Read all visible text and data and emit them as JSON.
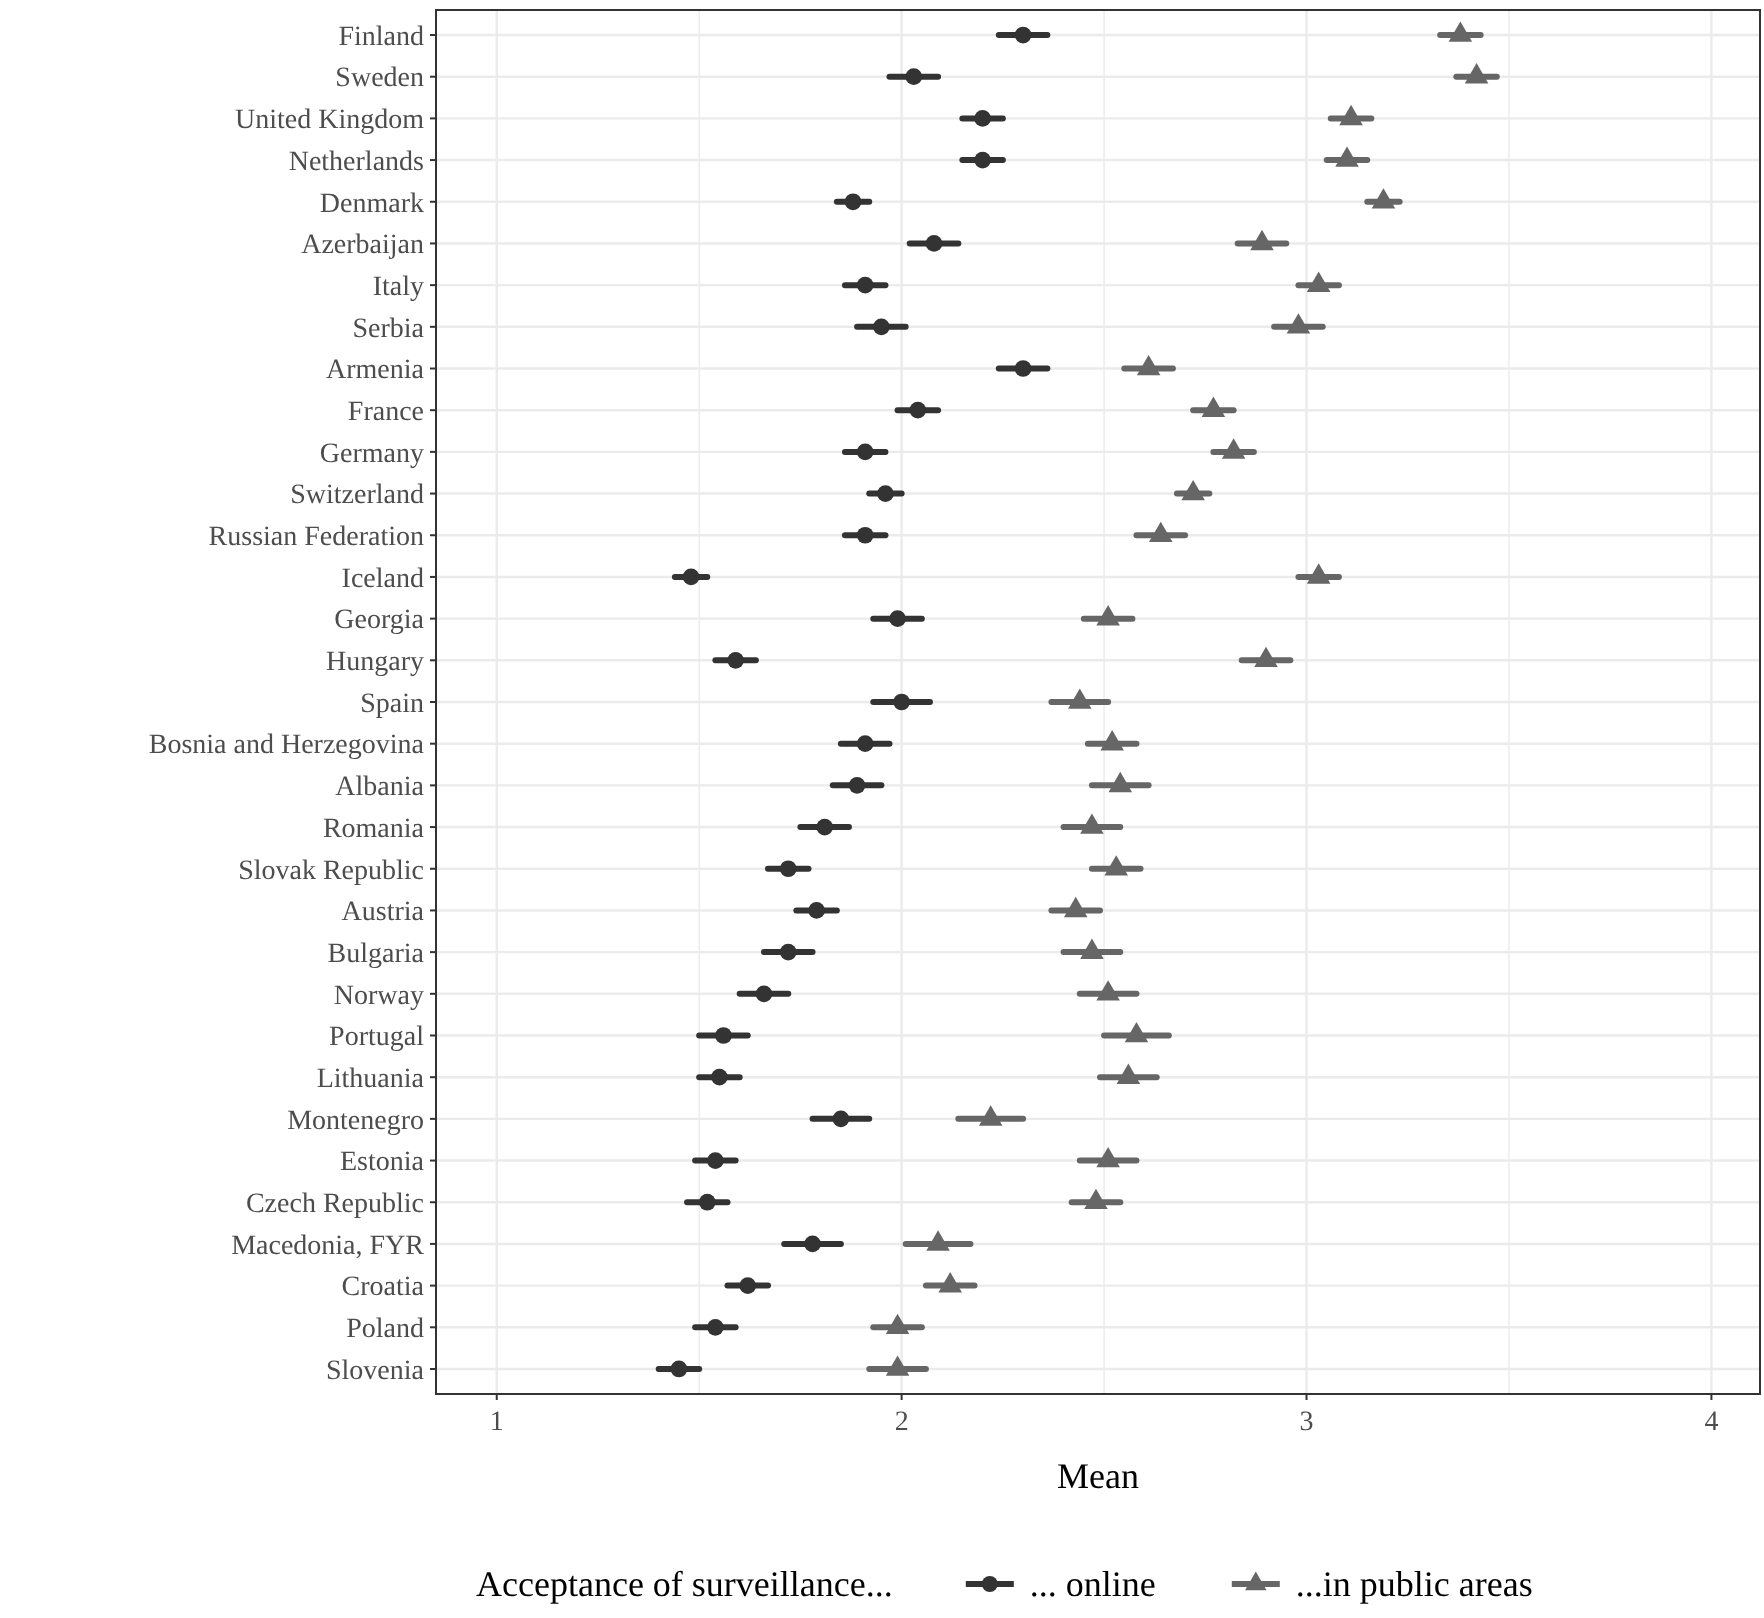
{
  "chart_data": {
    "type": "scatter",
    "orientation": "horizontal",
    "xlabel": "Mean",
    "legend_title": "Acceptance of surveillance...",
    "legend": "bottom",
    "grid": true,
    "categories": [
      "Finland",
      "Sweden",
      "United Kingdom",
      "Netherlands",
      "Denmark",
      "Azerbaijan",
      "Italy",
      "Serbia",
      "Armenia",
      "France",
      "Germany",
      "Switzerland",
      "Russian Federation",
      "Iceland",
      "Georgia",
      "Hungary",
      "Spain",
      "Bosnia and Herzegovina",
      "Albania",
      "Romania",
      "Slovak Republic",
      "Austria",
      "Bulgaria",
      "Norway",
      "Portugal",
      "Lithuania",
      "Montenegro",
      "Estonia",
      "Czech Republic",
      "Macedonia, FYR",
      "Croatia",
      "Poland",
      "Slovenia"
    ],
    "xlim": [
      0.85,
      4.12
    ],
    "xticks": [
      1,
      {
        "value": 1.5,
        "label": null
      },
      2,
      {
        "value": 2.5,
        "label": null
      },
      3,
      {
        "value": 3.5,
        "label": null
      },
      4
    ],
    "series": [
      {
        "name": "... online",
        "color": "#333333",
        "marker": "circle",
        "values": [
          2.3,
          2.03,
          2.2,
          2.2,
          1.88,
          2.08,
          1.91,
          1.95,
          2.3,
          2.04,
          1.91,
          1.96,
          1.91,
          1.48,
          1.99,
          1.59,
          2.0,
          1.91,
          1.89,
          1.81,
          1.72,
          1.79,
          1.72,
          1.66,
          1.56,
          1.55,
          1.85,
          1.54,
          1.52,
          1.78,
          1.62,
          1.54,
          1.45
        ],
        "errors": [
          0.06,
          0.06,
          0.05,
          0.05,
          0.04,
          0.06,
          0.05,
          0.06,
          0.06,
          0.05,
          0.05,
          0.04,
          0.05,
          0.04,
          0.06,
          0.05,
          0.07,
          0.06,
          0.06,
          0.06,
          0.05,
          0.05,
          0.06,
          0.06,
          0.06,
          0.05,
          0.07,
          0.05,
          0.05,
          0.07,
          0.05,
          0.05,
          0.05
        ]
      },
      {
        "name": "...in public areas",
        "color": "#666666",
        "marker": "triangle",
        "values": [
          3.38,
          3.42,
          3.11,
          3.1,
          3.19,
          2.89,
          3.03,
          2.98,
          2.61,
          2.77,
          2.82,
          2.72,
          2.64,
          3.03,
          2.51,
          2.9,
          2.44,
          2.52,
          2.54,
          2.47,
          2.53,
          2.43,
          2.47,
          2.51,
          2.58,
          2.56,
          2.22,
          2.51,
          2.48,
          2.09,
          2.12,
          1.99,
          1.99
        ],
        "errors": [
          0.05,
          0.05,
          0.05,
          0.05,
          0.04,
          0.06,
          0.05,
          0.06,
          0.06,
          0.05,
          0.05,
          0.04,
          0.06,
          0.05,
          0.06,
          0.06,
          0.07,
          0.06,
          0.07,
          0.07,
          0.06,
          0.06,
          0.07,
          0.07,
          0.08,
          0.07,
          0.08,
          0.07,
          0.06,
          0.08,
          0.06,
          0.06,
          0.07
        ]
      }
    ]
  }
}
